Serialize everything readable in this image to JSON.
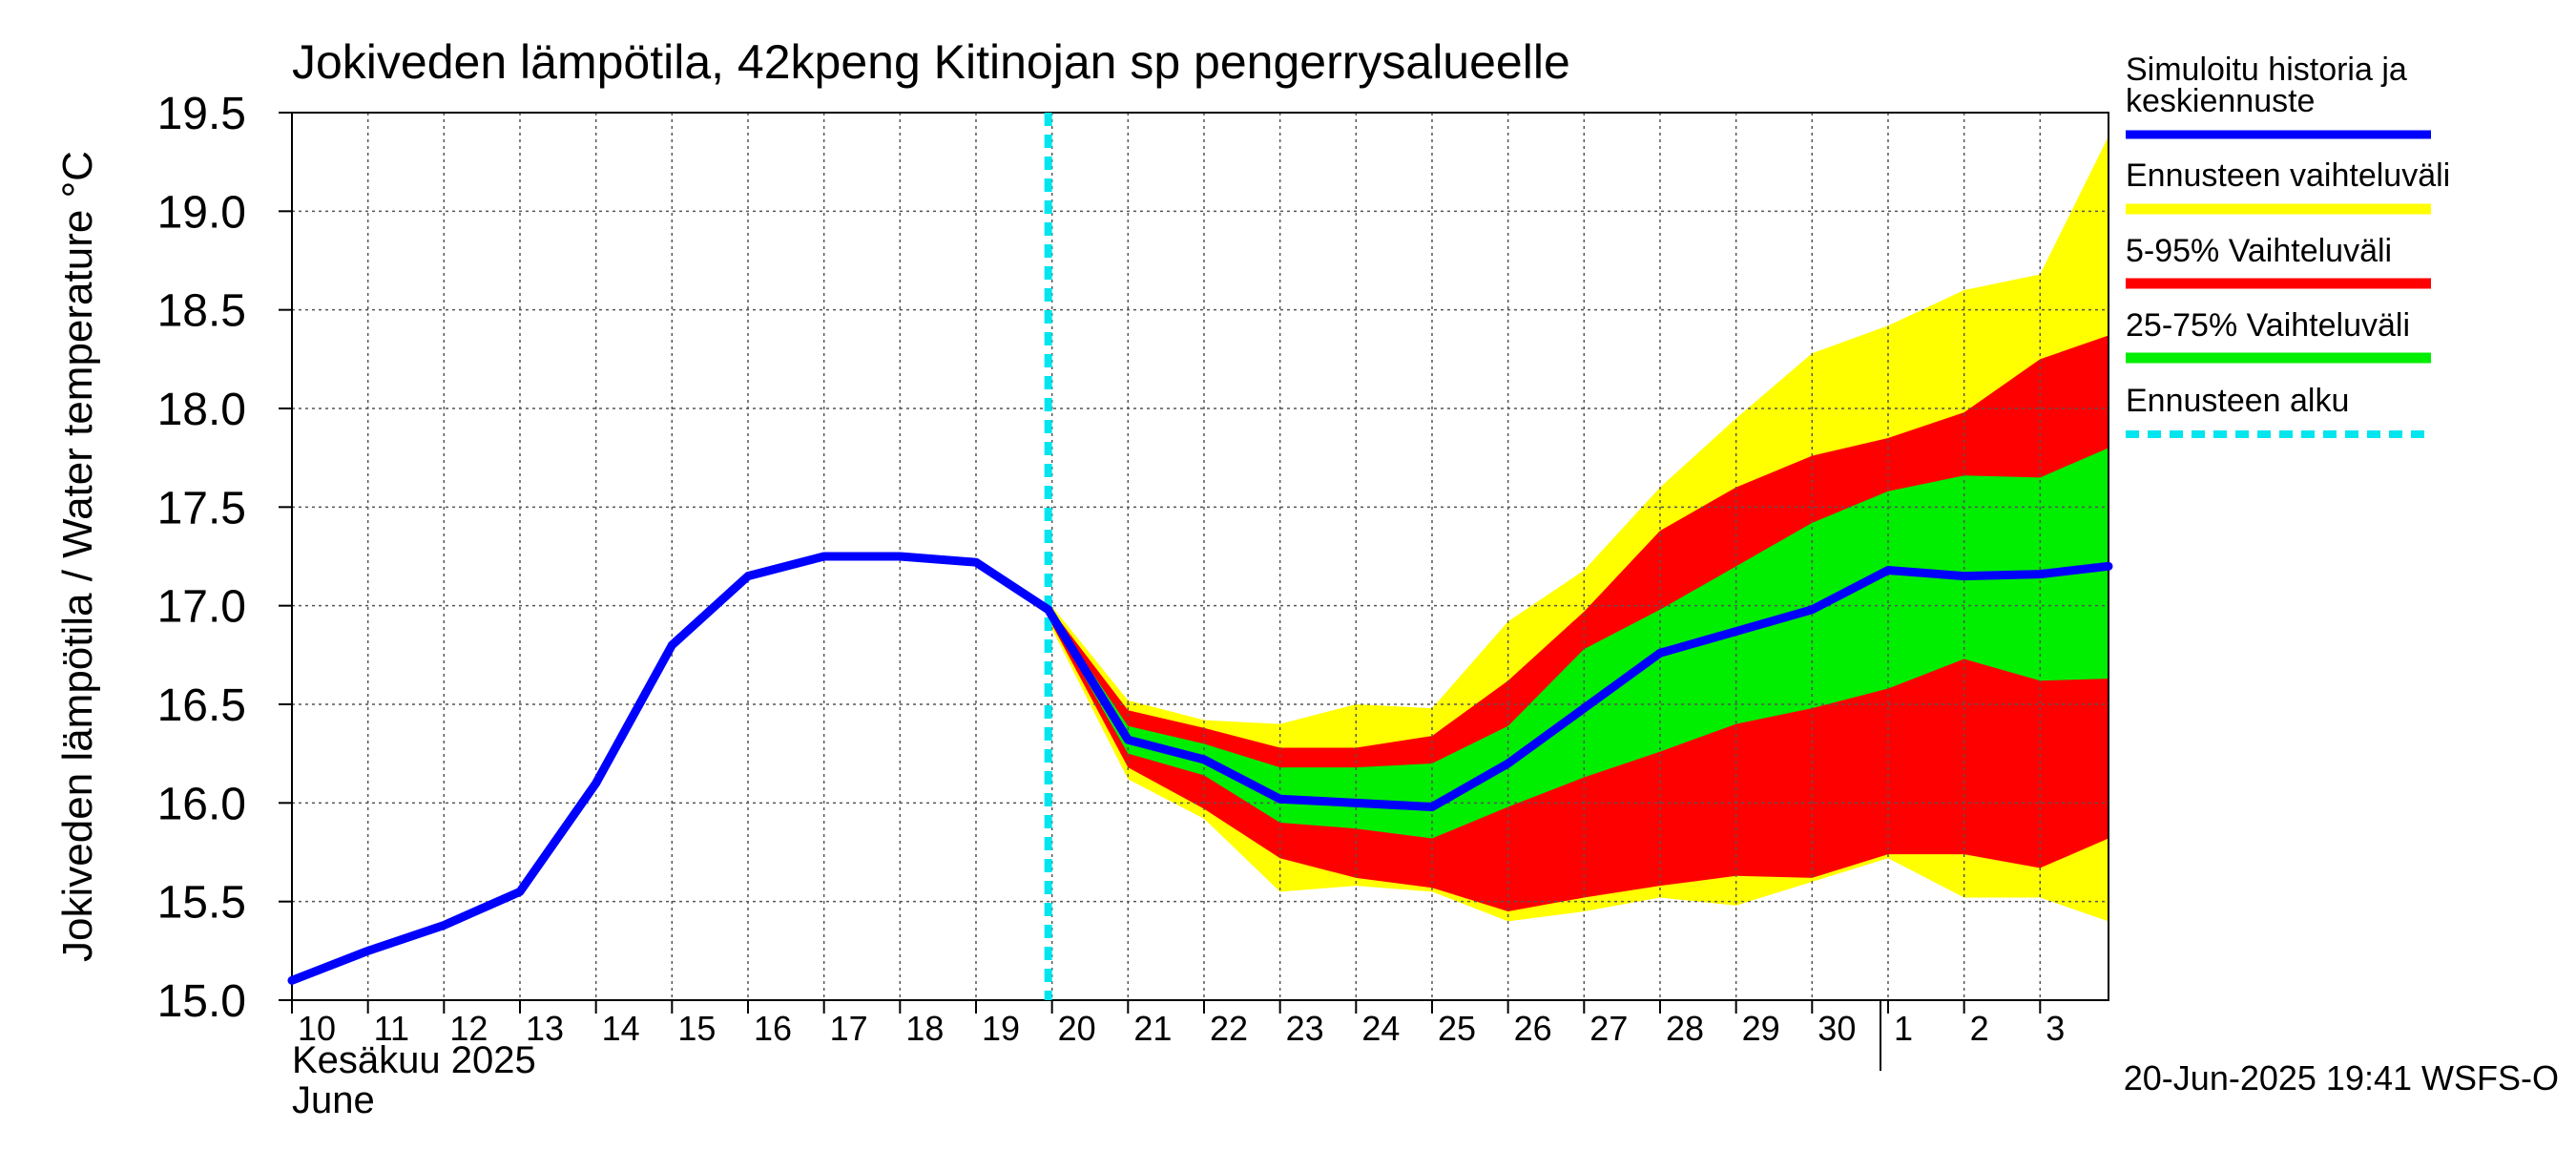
{
  "chart_data": {
    "type": "area",
    "title": "Jokiveden lämpötila, 42kpeng Kitinojan sp pengerrysalueelle",
    "ylabel": "Jokiveden lämpötila / Water temperature   °C",
    "xlabel_month_fi": "Kesäkuu  2025",
    "xlabel_month_en": "June",
    "timestamp": "20-Jun-2025 19:41 WSFS-O",
    "ylim": [
      15.0,
      19.5
    ],
    "yticks": [
      "15.0",
      "15.5",
      "16.0",
      "16.5",
      "17.0",
      "17.5",
      "18.0",
      "18.5",
      "19.0",
      "19.5"
    ],
    "x": [
      "10",
      "11",
      "12",
      "13",
      "14",
      "15",
      "16",
      "17",
      "18",
      "19",
      "20",
      "21",
      "22",
      "23",
      "24",
      "25",
      "26",
      "27",
      "28",
      "29",
      "30",
      "1",
      "2",
      "3"
    ],
    "xlim": [
      0,
      23.9
    ],
    "forecast_start_index": 9.95,
    "month_boundary_index": 20.9,
    "grid": true,
    "legend_position": "right",
    "legend": [
      {
        "label": "Simuloitu historia ja keskiennuste",
        "color": "#0000ff"
      },
      {
        "label": "Ennusteen vaihteluväli",
        "color": "#ffff00"
      },
      {
        "label": "5-95% Vaihteluväli",
        "color": "#ff0000"
      },
      {
        "label": "25-75% Vaihteluväli",
        "color": "#00ee00"
      },
      {
        "label": "Ennusteen alku",
        "color": "#00e5ee"
      }
    ],
    "series": [
      {
        "name": "Simuloitu historia ja keskiennuste",
        "color": "#0000ff",
        "x": [
          0,
          1,
          2,
          3,
          4,
          5,
          6,
          7,
          8,
          9,
          9.95,
          11,
          12,
          13,
          14,
          15,
          16,
          17,
          18,
          19,
          20,
          21,
          22,
          23,
          23.9
        ],
        "values": [
          15.1,
          15.25,
          15.38,
          15.55,
          16.1,
          16.8,
          17.15,
          17.25,
          17.25,
          17.22,
          16.98,
          16.32,
          16.22,
          16.02,
          16.0,
          15.98,
          16.2,
          16.48,
          16.76,
          16.87,
          16.98,
          17.18,
          17.15,
          17.16,
          17.2
        ]
      }
    ],
    "bands": [
      {
        "name": "Ennusteen vaihteluväli",
        "color": "#ffff00",
        "x": [
          9.95,
          11,
          12,
          13,
          14,
          15,
          16,
          17,
          18,
          19,
          20,
          21,
          22,
          23,
          23.9
        ],
        "upper": [
          17.02,
          16.52,
          16.42,
          16.4,
          16.5,
          16.48,
          16.92,
          17.18,
          17.6,
          17.95,
          18.28,
          18.42,
          18.6,
          18.68,
          19.38
        ],
        "lower": [
          16.92,
          16.12,
          15.92,
          15.55,
          15.58,
          15.55,
          15.4,
          15.45,
          15.52,
          15.48,
          15.6,
          15.72,
          15.52,
          15.52,
          15.4
        ]
      },
      {
        "name": "5-95% Vaihteluväli",
        "color": "#ff0000",
        "x": [
          9.95,
          11,
          12,
          13,
          14,
          15,
          16,
          17,
          18,
          19,
          20,
          21,
          22,
          23,
          23.9
        ],
        "upper": [
          17.0,
          16.47,
          16.38,
          16.28,
          16.28,
          16.34,
          16.62,
          16.97,
          17.38,
          17.6,
          17.76,
          17.85,
          17.98,
          18.25,
          18.37
        ],
        "lower": [
          16.94,
          16.18,
          15.97,
          15.72,
          15.62,
          15.57,
          15.45,
          15.52,
          15.58,
          15.63,
          15.62,
          15.74,
          15.74,
          15.67,
          15.82
        ]
      },
      {
        "name": "25-75% Vaihteluväli",
        "color": "#00ee00",
        "x": [
          9.95,
          11,
          12,
          13,
          14,
          15,
          16,
          17,
          18,
          19,
          20,
          21,
          22,
          23,
          23.9
        ],
        "upper": [
          16.99,
          16.39,
          16.3,
          16.18,
          16.18,
          16.2,
          16.39,
          16.78,
          16.98,
          17.2,
          17.42,
          17.58,
          17.66,
          17.65,
          17.8
        ],
        "lower": [
          16.96,
          16.25,
          16.14,
          15.9,
          15.87,
          15.82,
          15.98,
          16.13,
          16.26,
          16.4,
          16.48,
          16.58,
          16.73,
          16.62,
          16.63
        ]
      }
    ]
  }
}
